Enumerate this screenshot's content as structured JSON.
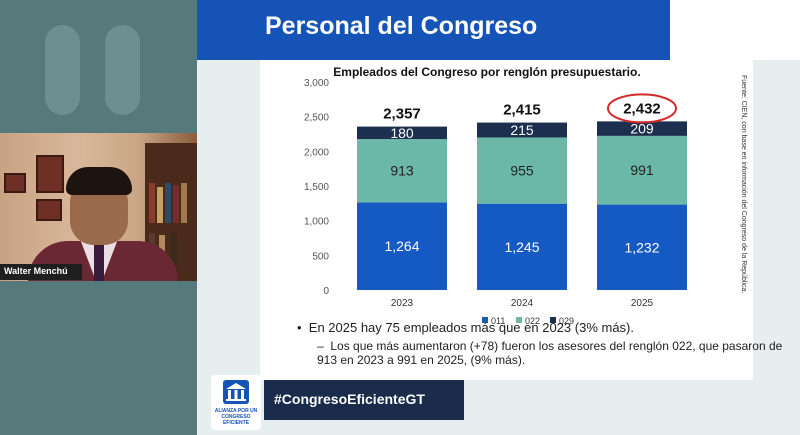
{
  "presenter": {
    "name": "Walter Menchú"
  },
  "slide": {
    "title": "Personal del Congreso",
    "source": "Fuente: CIEN, con base en información del Congreso de la República.",
    "bullets": [
      "En 2025 hay 75 empleados más que en 2023 (3% más).",
      "Los que más aumentaron (+78) fueron los asesores del renglón 022, que pasaron de 913 en 2023 a 991 en 2025, (9% más)."
    ],
    "hashtag": "#CongresoEficienteGT",
    "logo_text": "ALIANZA POR UN CONGRESO EFICIENTE"
  },
  "chart_data": {
    "type": "bar",
    "stacked": true,
    "title": "Empleados del Congreso por renglón presupuestario.",
    "categories": [
      "2023",
      "2024",
      "2025"
    ],
    "series": [
      {
        "name": "011",
        "values": [
          1264,
          1245,
          1232
        ],
        "labels": [
          "1,264",
          "1,245",
          "1,232"
        ],
        "color": "#1559c2",
        "text_color": "#ffffff"
      },
      {
        "name": "022",
        "values": [
          913,
          955,
          991
        ],
        "labels": [
          "913",
          "955",
          "991"
        ],
        "color": "#6bb8a8",
        "text_color": "#222222"
      },
      {
        "name": "029",
        "values": [
          180,
          215,
          209
        ],
        "labels": [
          "180",
          "215",
          "209"
        ],
        "color": "#1c2f4e",
        "text_color": "#ffffff"
      }
    ],
    "totals": [
      2357,
      2415,
      2432
    ],
    "total_labels": [
      "2,357",
      "2,415",
      "2,432"
    ],
    "highlighted_total": "2025",
    "yticks": [
      "0",
      "500",
      "1,000",
      "1,500",
      "2,000",
      "2,500",
      "3,000"
    ],
    "ylim": [
      0,
      3000
    ],
    "legend": "bottom",
    "grid": false
  }
}
